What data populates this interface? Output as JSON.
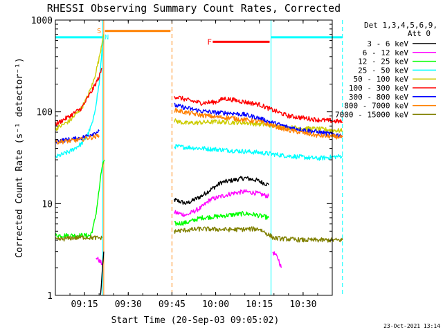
{
  "chart_data": {
    "type": "line",
    "title": "RHESSI Observing Summary Count Rates, Corrected",
    "xlabel": "Start Time (20-Sep-03 09:05:02)",
    "ylabel": "Corrected Count Rate (s⁻¹ detector⁻¹)",
    "ylog": true,
    "ylim": [
      1,
      1000
    ],
    "xlim_minutes": [
      5,
      100
    ],
    "x_ticks": [
      {
        "minute": 15,
        "label": "09:15"
      },
      {
        "minute": 30,
        "label": "09:30"
      },
      {
        "minute": 45,
        "label": "09:45"
      },
      {
        "minute": 60,
        "label": "10:00"
      },
      {
        "minute": 75,
        "label": "10:15"
      },
      {
        "minute": 90,
        "label": "10:30"
      },
      {
        "minute": 105,
        "label": "10:45"
      }
    ],
    "y_ticks": [
      {
        "value": 1,
        "label": "1"
      },
      {
        "value": 10,
        "label": "10"
      },
      {
        "value": 100,
        "label": "100"
      },
      {
        "value": 1000,
        "label": "1000"
      }
    ],
    "legend_header": [
      "Det 1,3,4,5,6,9,",
      "Att 0"
    ],
    "series": [
      {
        "name": "3 - 6 keV",
        "color": "#000000",
        "segments": [
          [
            [
              20.5,
              1.0
            ],
            [
              21.2,
              2.0
            ],
            [
              21.6,
              3.0
            ]
          ],
          [
            [
              45.8,
              11
            ],
            [
              50,
              10
            ],
            [
              55,
              12
            ],
            [
              58,
              14
            ],
            [
              62,
              17
            ],
            [
              66,
              18
            ],
            [
              70,
              19
            ],
            [
              74,
              18
            ],
            [
              76,
              17
            ],
            [
              78.2,
              16
            ]
          ]
        ]
      },
      {
        "name": "6 - 12 keV",
        "color": "#ff00ff",
        "segments": [
          [
            [
              19,
              2.6
            ],
            [
              20,
              2.4
            ],
            [
              21,
              2.2
            ]
          ],
          [
            [
              45.8,
              8
            ],
            [
              50,
              7.5
            ],
            [
              55,
              9
            ],
            [
              58,
              11
            ],
            [
              62,
              12
            ],
            [
              66,
              13
            ],
            [
              70,
              13.5
            ],
            [
              74,
              13
            ],
            [
              76,
              12.5
            ],
            [
              78.2,
              12
            ]
          ],
          [
            [
              79.5,
              3.0
            ],
            [
              81.5,
              2.5
            ],
            [
              82.5,
              2.0
            ]
          ]
        ]
      },
      {
        "name": "12 - 25 keV",
        "color": "#00ff00",
        "segments": [
          [
            [
              5,
              4.5
            ],
            [
              17,
              4.5
            ],
            [
              18,
              5.5
            ],
            [
              19,
              8
            ],
            [
              20,
              14
            ],
            [
              21,
              25
            ],
            [
              21.8,
              30
            ]
          ],
          [
            [
              45.8,
              6
            ],
            [
              50,
              6.2
            ],
            [
              55,
              7
            ],
            [
              60,
              7.2
            ],
            [
              65,
              7.5
            ],
            [
              70,
              7.8
            ],
            [
              74,
              7.5
            ],
            [
              78.2,
              7
            ]
          ]
        ]
      },
      {
        "name": "25 - 50 keV",
        "color": "#00ffff",
        "segments": [
          [
            [
              5,
              32
            ],
            [
              10,
              37
            ],
            [
              14,
              45
            ],
            [
              16,
              55
            ],
            [
              18,
              80
            ],
            [
              20,
              200
            ],
            [
              21,
              450
            ],
            [
              21.5,
              650
            ]
          ],
          [
            [
              45.8,
              42
            ],
            [
              55,
              40
            ],
            [
              65,
              38
            ],
            [
              75,
              36
            ],
            [
              85,
              33
            ],
            [
              95,
              31
            ],
            [
              103.5,
              33
            ]
          ]
        ]
      },
      {
        "name": "50 - 100 keV",
        "color": "#cccc00",
        "segments": [
          [
            [
              5,
              65
            ],
            [
              10,
              80
            ],
            [
              14,
              110
            ],
            [
              16,
              145
            ],
            [
              18,
              210
            ],
            [
              20,
              380
            ],
            [
              21.5,
              700
            ]
          ],
          [
            [
              45.8,
              80
            ],
            [
              50,
              75
            ],
            [
              60,
              78
            ],
            [
              70,
              76
            ],
            [
              78,
              72
            ],
            [
              83,
              68
            ],
            [
              95,
              65
            ],
            [
              103.5,
              62
            ]
          ]
        ]
      },
      {
        "name": "100 - 300 keV",
        "color": "#ff0000",
        "segments": [
          [
            [
              5,
              73
            ],
            [
              10,
              90
            ],
            [
              14,
              110
            ],
            [
              16,
              140
            ],
            [
              18,
              180
            ],
            [
              20,
              240
            ],
            [
              21,
              300
            ]
          ],
          [
            [
              45.8,
              148
            ],
            [
              50,
              135
            ],
            [
              55,
              125
            ],
            [
              60,
              128
            ],
            [
              63,
              140
            ],
            [
              66,
              135
            ],
            [
              70,
              128
            ],
            [
              75,
              120
            ],
            [
              80,
              103
            ],
            [
              85,
              90
            ],
            [
              95,
              82
            ],
            [
              103.5,
              78
            ]
          ]
        ]
      },
      {
        "name": "300 - 800 keV",
        "color": "#0000ff",
        "segments": [
          [
            [
              5,
              48
            ],
            [
              10,
              50
            ],
            [
              14,
              52
            ],
            [
              16,
              55
            ],
            [
              18,
              58
            ],
            [
              20,
              62
            ]
          ],
          [
            [
              45.8,
              118
            ],
            [
              50,
              110
            ],
            [
              55,
              102
            ],
            [
              60,
              98
            ],
            [
              65,
              97
            ],
            [
              70,
              93
            ],
            [
              75,
              85
            ],
            [
              80,
              75
            ],
            [
              85,
              68
            ],
            [
              95,
              60
            ],
            [
              103.5,
              55
            ]
          ]
        ]
      },
      {
        "name": "800 - 7000 keV",
        "color": "#ff8000",
        "segments": [
          [
            [
              5,
              47
            ],
            [
              10,
              48
            ],
            [
              14,
              50
            ],
            [
              16,
              52
            ],
            [
              18,
              53
            ],
            [
              20,
              55
            ]
          ],
          [
            [
              45.8,
              105
            ],
            [
              50,
              98
            ],
            [
              55,
              92
            ],
            [
              60,
              88
            ],
            [
              65,
              86
            ],
            [
              70,
              82
            ],
            [
              75,
              78
            ],
            [
              80,
              70
            ],
            [
              85,
              63
            ],
            [
              95,
              55
            ],
            [
              103.5,
              53
            ]
          ]
        ]
      },
      {
        "name": "7000 - 15000 keV",
        "color": "#808000",
        "segments": [
          [
            [
              5,
              4.0
            ],
            [
              10,
              4.2
            ],
            [
              15,
              4.3
            ],
            [
              21,
              4.2
            ]
          ],
          [
            [
              45.8,
              5.0
            ],
            [
              55,
              5.3
            ],
            [
              65,
              5.2
            ],
            [
              75,
              5.3
            ],
            [
              80,
              4.2
            ],
            [
              90,
              4.0
            ],
            [
              103.5,
              4.0
            ]
          ]
        ]
      }
    ],
    "attenuator_lines": [
      {
        "minute": 21.6,
        "color": "#ff8000",
        "style": "solid"
      },
      {
        "minute": 45.0,
        "color": "#ff8000",
        "style": "dashed"
      }
    ],
    "night_lines": [
      {
        "minute": 5.0,
        "color": "#00ffff",
        "style": "solid"
      },
      {
        "minute": 21.2,
        "color": "#00ffff",
        "style": "solid"
      },
      {
        "minute": 79.0,
        "color": "#00ffff",
        "style": "solid"
      },
      {
        "minute": 103.5,
        "color": "#00ffff",
        "style": "dashed"
      }
    ],
    "flag_bars": [
      {
        "label": "",
        "color": "#00ffff",
        "y": 650,
        "x0": 5,
        "x1": 21.2
      },
      {
        "label": "",
        "color": "#00ffff",
        "y": 650,
        "x0": 79,
        "x1": 103.5
      },
      {
        "label": "",
        "color": "#ff8000",
        "y": 760,
        "x0": 22,
        "x1": 44.5
      },
      {
        "label": "F",
        "color": "#ff0000",
        "y": 580,
        "x0": 59,
        "x1": 78.5
      }
    ],
    "markers": [
      {
        "label": "S",
        "color": "#ff8000",
        "minute": 20.0,
        "y": 760
      },
      {
        "label": "N",
        "color": "#00ffff",
        "minute": 22.6,
        "y": 650
      }
    ],
    "footer_date": "23-Oct-2021 13:14"
  }
}
